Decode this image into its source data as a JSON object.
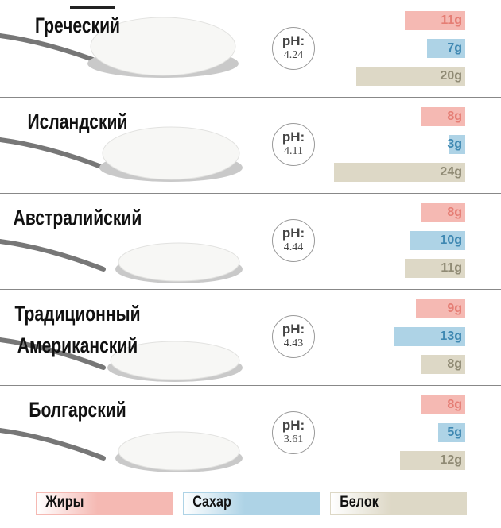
{
  "chart_data": {
    "type": "bar",
    "categories": [
      "Греческий",
      "Исландский",
      "Австралийский",
      "Традиционный Американский",
      "Болгарский"
    ],
    "series": [
      {
        "name": "Жиры",
        "color": "#f5b9b3",
        "label_color": "#e57d74",
        "values": [
          11,
          8,
          8,
          9,
          8
        ],
        "value_labels": [
          "11g",
          "8g",
          "8g",
          "9g",
          "8g"
        ]
      },
      {
        "name": "Сахар",
        "color": "#aed3e6",
        "label_color": "#3f88b2",
        "values": [
          7,
          3,
          10,
          13,
          5
        ],
        "value_labels": [
          "7g",
          "3g",
          "10g",
          "13g",
          "5g"
        ]
      },
      {
        "name": "Белок",
        "color": "#ddd8c6",
        "label_color": "#8f8a74",
        "values": [
          20,
          24,
          11,
          8,
          12
        ],
        "value_labels": [
          "20g",
          "24g",
          "11g",
          "8g",
          "12g"
        ]
      }
    ],
    "ph_label": "pH:",
    "ph_values": [
      4.24,
      4.11,
      4.44,
      4.43,
      3.61
    ]
  }
}
